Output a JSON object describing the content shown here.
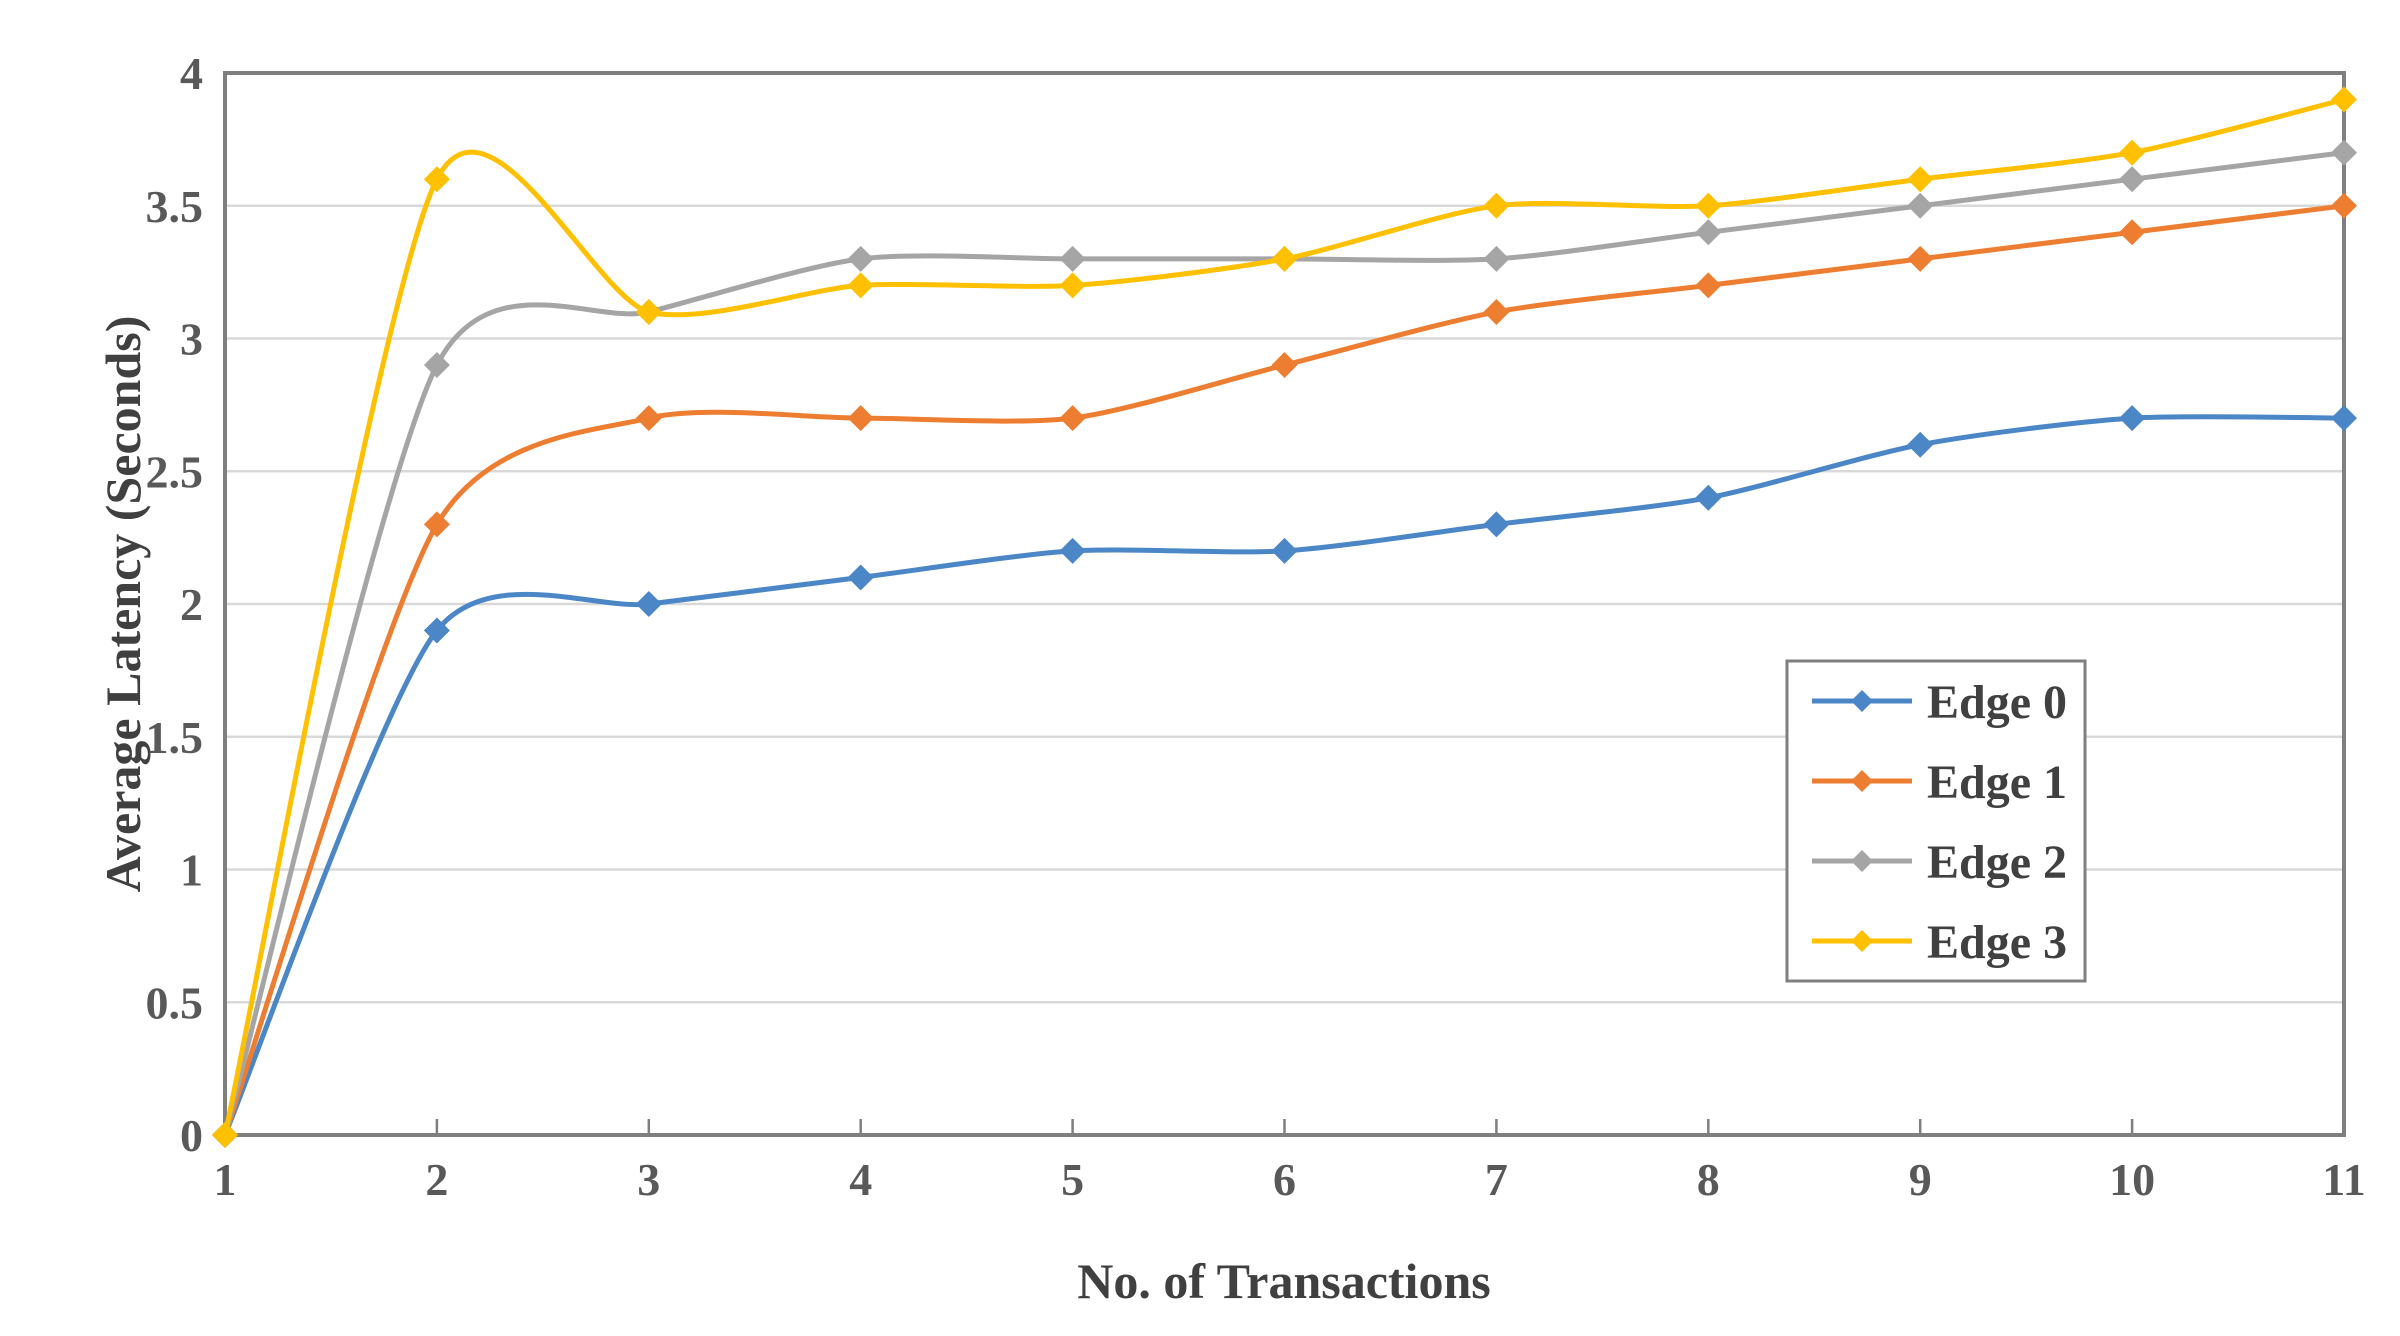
{
  "chart_data": {
    "type": "line",
    "title": "",
    "xlabel": "No. of Transactions",
    "ylabel": "Average Latency (Seconds)",
    "x": [
      1,
      2,
      3,
      4,
      5,
      6,
      7,
      8,
      9,
      10,
      11
    ],
    "xtick_labels": [
      "1",
      "2",
      "3",
      "4",
      "5",
      "6",
      "7",
      "8",
      "9",
      "10",
      "11"
    ],
    "ylim": [
      0,
      4
    ],
    "ytick_step": 0.5,
    "yticks": [
      0,
      0.5,
      1,
      1.5,
      2,
      2.5,
      3,
      3.5,
      4
    ],
    "ytick_labels": [
      "0",
      "0.5",
      "1",
      "1.5",
      "2",
      "2.5",
      "3",
      "3.5",
      "4"
    ],
    "grid": "horizontal",
    "line_style": "smooth",
    "marker": "diamond",
    "legend_position": "inside-right",
    "series": [
      {
        "name": "Edge 0",
        "color": "#4B86C6",
        "values": [
          0,
          1.9,
          2.0,
          2.1,
          2.2,
          2.2,
          2.3,
          2.4,
          2.6,
          2.7,
          2.7
        ]
      },
      {
        "name": "Edge 1",
        "color": "#ED7D31",
        "values": [
          0,
          2.3,
          2.7,
          2.7,
          2.7,
          2.9,
          3.1,
          3.2,
          3.3,
          3.4,
          3.5
        ]
      },
      {
        "name": "Edge 2",
        "color": "#A5A5A5",
        "values": [
          0,
          2.9,
          3.1,
          3.3,
          3.3,
          3.3,
          3.3,
          3.4,
          3.5,
          3.6,
          3.7
        ]
      },
      {
        "name": "Edge 3",
        "color": "#FFC000",
        "values": [
          0,
          3.6,
          3.1,
          3.2,
          3.2,
          3.3,
          3.5,
          3.5,
          3.6,
          3.7,
          3.9
        ]
      }
    ],
    "colors": {
      "background": "#FFFFFF",
      "gridline": "#D9D9D9",
      "axis_frame": "#7F7F7F",
      "tick_text": "#595959",
      "title_text": "#404040",
      "legend_border": "#7F7F7F"
    }
  }
}
